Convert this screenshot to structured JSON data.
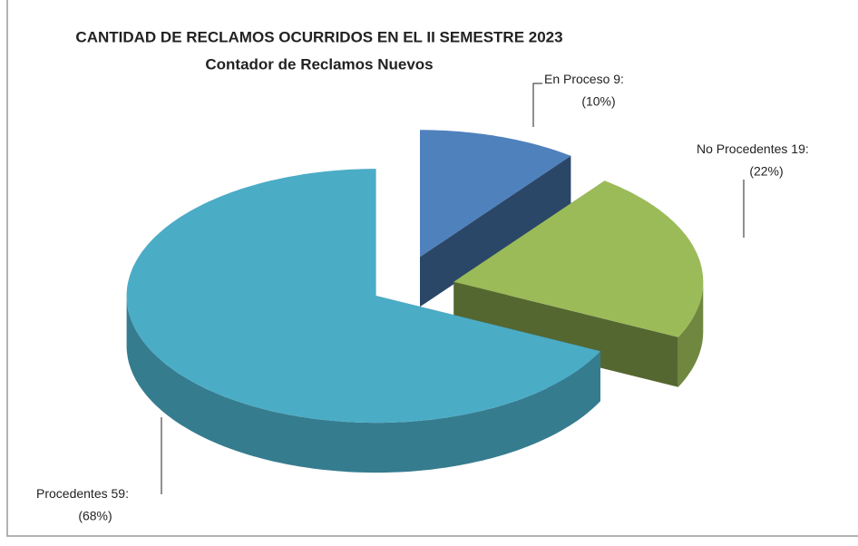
{
  "chart_data": {
    "type": "pie3d",
    "title": "CANTIDAD DE RECLAMOS OCURRIDOS EN EL  II SEMESTRE 2023",
    "subtitle": "Contador de Reclamos Nuevos",
    "categories": [
      "En Proceso",
      "No Procedentes",
      "Procedentes"
    ],
    "values": [
      9,
      19,
      59
    ],
    "value_labels": [
      "9:",
      "19:",
      "59:"
    ],
    "percentages": [
      10,
      22,
      68
    ],
    "percentage_labels": [
      "(10%)",
      "(22%)",
      "(68%)"
    ],
    "colors": [
      "#4f81bd",
      "#9bbb59",
      "#4bacc6"
    ]
  }
}
